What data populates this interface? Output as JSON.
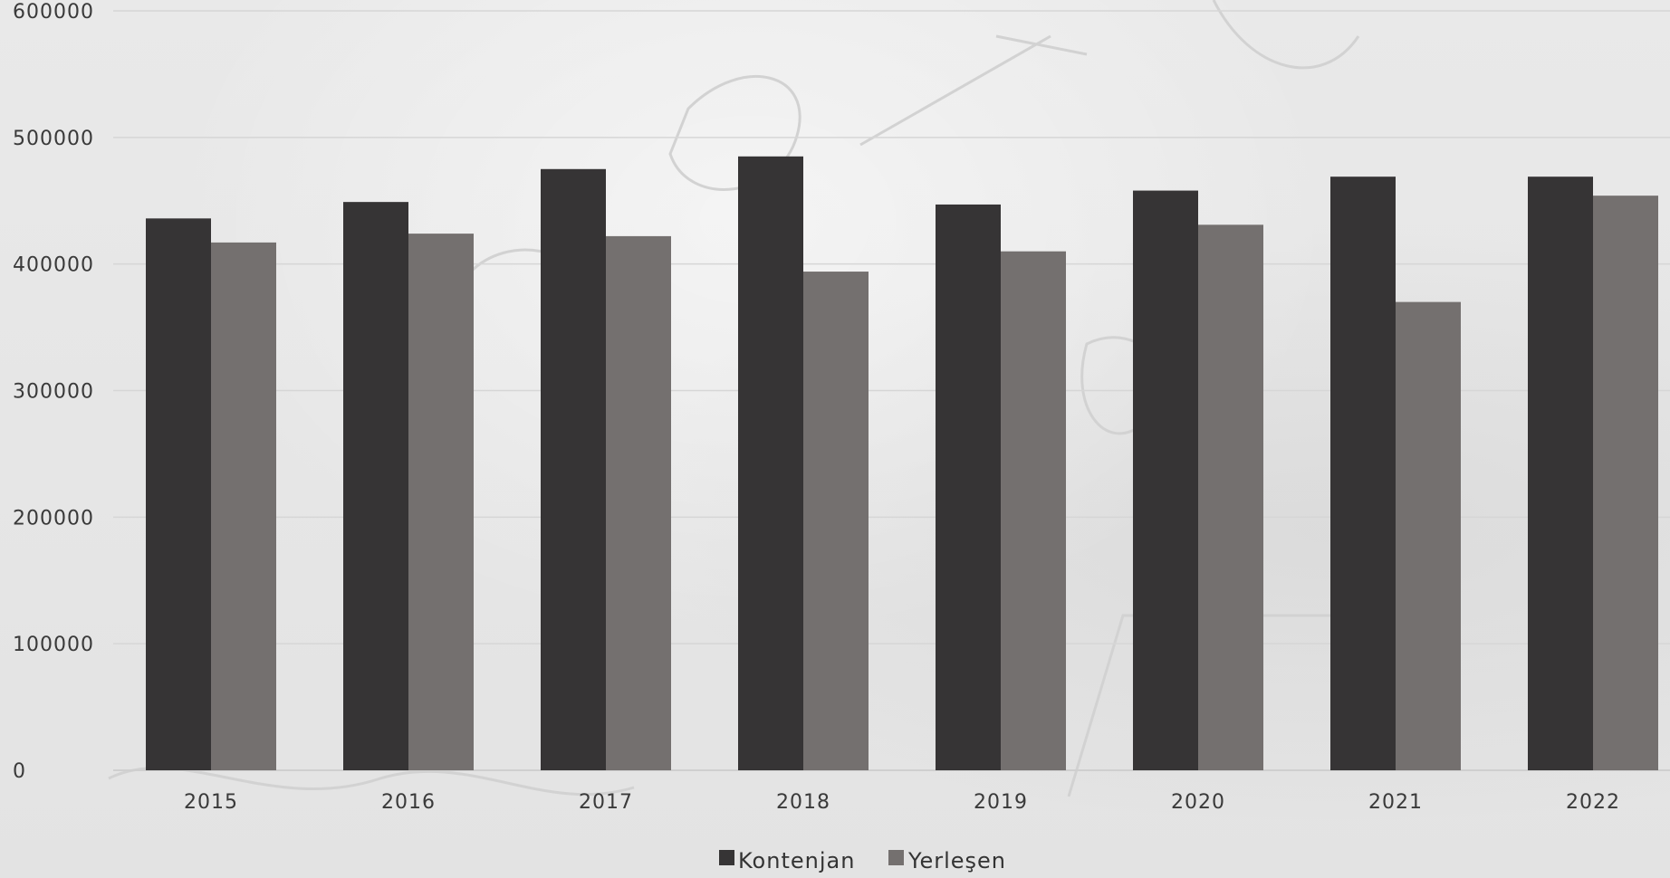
{
  "chart_data": {
    "type": "bar",
    "categories": [
      "2015",
      "2016",
      "2017",
      "2018",
      "2019",
      "2020",
      "2021",
      "2022"
    ],
    "series": [
      {
        "name": "Kontenjan",
        "color": "#363435",
        "values": [
          436000,
          449000,
          475000,
          485000,
          447000,
          458000,
          469000,
          469000
        ]
      },
      {
        "name": "Yerleşen",
        "color": "#74706f",
        "values": [
          417000,
          424000,
          422000,
          394000,
          410000,
          431000,
          370000,
          454000
        ]
      }
    ],
    "y_ticks": [
      "0",
      "100000",
      "200000",
      "300000",
      "400000",
      "500000",
      "600000"
    ],
    "ylim": [
      0,
      600000
    ],
    "grid": true,
    "legend_position": "bottom-center",
    "title": "",
    "xlabel": "",
    "ylabel": ""
  }
}
